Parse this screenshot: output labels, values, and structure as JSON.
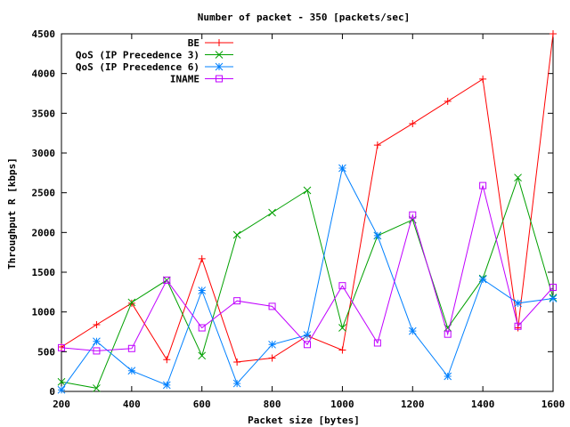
{
  "chart_data": {
    "type": "line",
    "title": "Number of packet - 350 [packets/sec]",
    "xlabel": "Packet size [bytes]",
    "ylabel": "Throughput R [kbps]",
    "xlim": [
      200,
      1600
    ],
    "ylim": [
      0,
      4500
    ],
    "xticks": [
      200,
      400,
      600,
      800,
      1000,
      1200,
      1400,
      1600
    ],
    "yticks": [
      0,
      500,
      1000,
      1500,
      2000,
      2500,
      3000,
      3500,
      4000,
      4500
    ],
    "x": [
      200,
      300,
      400,
      500,
      600,
      700,
      800,
      900,
      1000,
      1100,
      1200,
      1300,
      1400,
      1500,
      1600
    ],
    "grid": false,
    "legend_position": "top-right",
    "series": [
      {
        "name": "BE",
        "color": "#ff0000",
        "marker": "plus",
        "values": [
          560,
          840,
          1110,
          400,
          1670,
          370,
          420,
          700,
          520,
          3100,
          3370,
          3650,
          3930,
          800,
          4500
        ]
      },
      {
        "name": "QoS (IP Precedence 3)",
        "color": "#00a000",
        "marker": "cross",
        "values": [
          120,
          40,
          1120,
          1400,
          450,
          1970,
          2250,
          2530,
          800,
          1960,
          2160,
          800,
          1420,
          2690,
          1180
        ]
      },
      {
        "name": "QoS (IP Precedence 6)",
        "color": "#0080ff",
        "marker": "star",
        "values": [
          20,
          630,
          260,
          80,
          1270,
          100,
          590,
          710,
          2810,
          1960,
          760,
          190,
          1410,
          1110,
          1170
        ]
      },
      {
        "name": "INAME",
        "color": "#c000ff",
        "marker": "square",
        "values": [
          550,
          510,
          540,
          1400,
          800,
          1140,
          1070,
          590,
          1330,
          610,
          2220,
          720,
          2590,
          820,
          1310
        ]
      }
    ]
  }
}
